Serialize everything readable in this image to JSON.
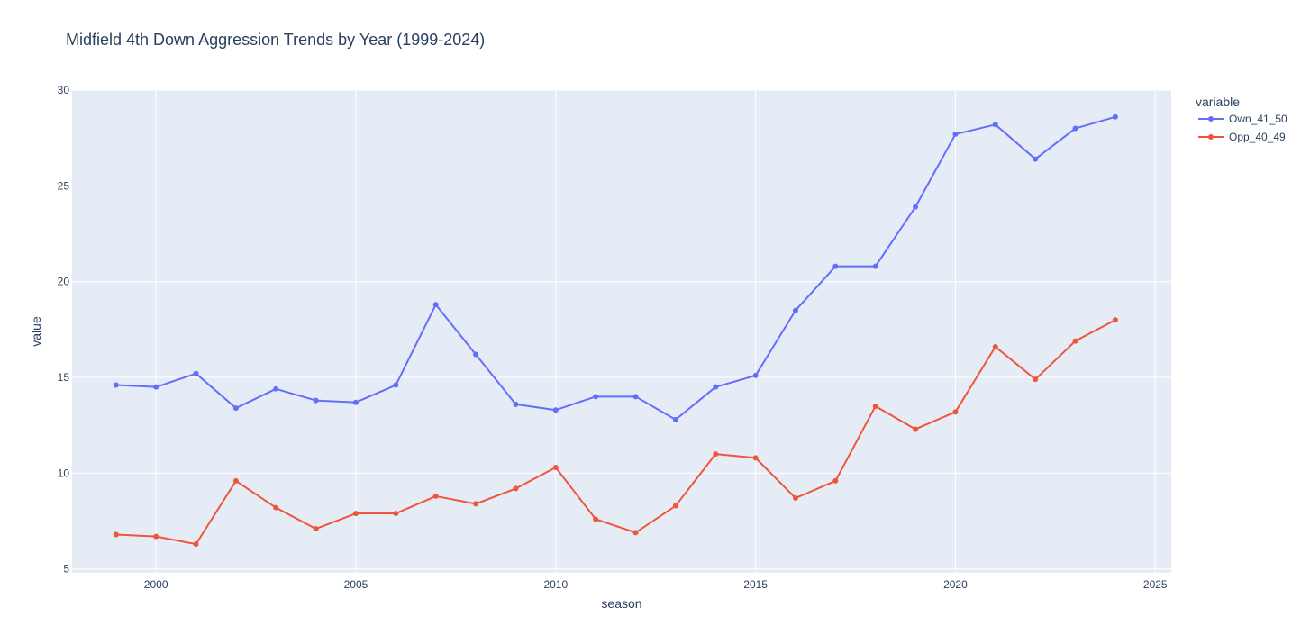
{
  "chart_data": {
    "type": "line",
    "title": "Midfield 4th Down Aggression Trends by Year (1999-2024)",
    "xlabel": "season",
    "ylabel": "value",
    "xlim": [
      1997.9,
      2025.4
    ],
    "ylim": [
      4.8,
      30.0
    ],
    "xticks": [
      2000,
      2005,
      2010,
      2015,
      2020,
      2025
    ],
    "yticks": [
      5,
      10,
      15,
      20,
      25,
      30
    ],
    "grid": true,
    "legend_title": "variable",
    "legend_position": "right",
    "x": [
      1999,
      2000,
      2001,
      2002,
      2003,
      2004,
      2005,
      2006,
      2007,
      2008,
      2009,
      2010,
      2011,
      2012,
      2013,
      2014,
      2015,
      2016,
      2017,
      2018,
      2019,
      2020,
      2021,
      2022,
      2023,
      2024
    ],
    "series": [
      {
        "name": "Own_41_50",
        "color": "#636efa",
        "values": [
          14.6,
          14.5,
          15.2,
          13.4,
          14.4,
          13.8,
          13.7,
          14.6,
          18.8,
          16.2,
          13.6,
          13.3,
          14.0,
          14.0,
          12.8,
          14.5,
          15.1,
          18.5,
          20.8,
          20.8,
          23.9,
          27.7,
          28.2,
          26.4,
          28.0,
          28.6
        ]
      },
      {
        "name": "Opp_40_49",
        "color": "#ef553b",
        "values": [
          6.8,
          6.7,
          6.3,
          9.6,
          8.2,
          7.1,
          7.9,
          7.9,
          8.8,
          8.4,
          9.2,
          10.3,
          7.6,
          6.9,
          8.3,
          11.0,
          10.8,
          8.7,
          9.6,
          13.5,
          12.3,
          13.2,
          16.6,
          14.9,
          16.9,
          18.0
        ]
      }
    ]
  }
}
